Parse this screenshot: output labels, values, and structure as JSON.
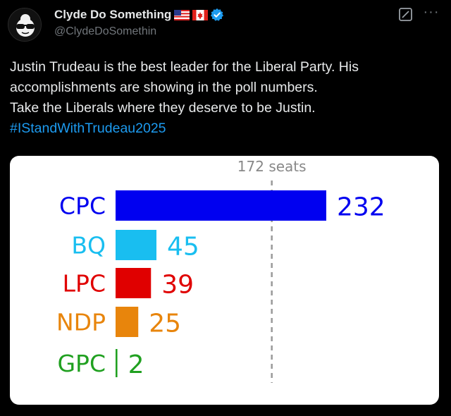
{
  "post": {
    "display_name": "Clyde Do Something",
    "handle": "@ClydeDoSomethin",
    "verified_icon": "verified-badge-icon",
    "flags": [
      "us-flag-icon",
      "canada-flag-icon"
    ],
    "text_lines": [
      "Justin Trudeau is the best leader for the Liberal Party.  His",
      "accomplishments are showing in the poll numbers.",
      "Take the Liberals where they deserve to be Justin."
    ],
    "hashtag": "#IStandWithTrudeau2025"
  },
  "icons": {
    "grok": "grok-icon",
    "more": "more-options-icon",
    "more_glyph": "···"
  },
  "colors": {
    "background": "#000000",
    "text": "#e7e9ea",
    "secondary": "#71767b",
    "link": "#1d9bf0",
    "verified": "#1d9bf0"
  },
  "chart_data": {
    "type": "bar",
    "orientation": "horizontal",
    "categories": [
      "CPC",
      "BQ",
      "LPC",
      "NDP",
      "GPC"
    ],
    "values": [
      232,
      45,
      39,
      25,
      2
    ],
    "colors": [
      "#0000f0",
      "#19bef0",
      "#e00000",
      "#e8850c",
      "#20a020"
    ],
    "reference_line": {
      "value": 172,
      "label": "172 seats",
      "style": "dashed",
      "color": "#999999"
    },
    "title": "",
    "xlabel": "",
    "ylabel": "",
    "xlim": [
      0,
      232
    ],
    "grid": false,
    "legend": "none"
  }
}
